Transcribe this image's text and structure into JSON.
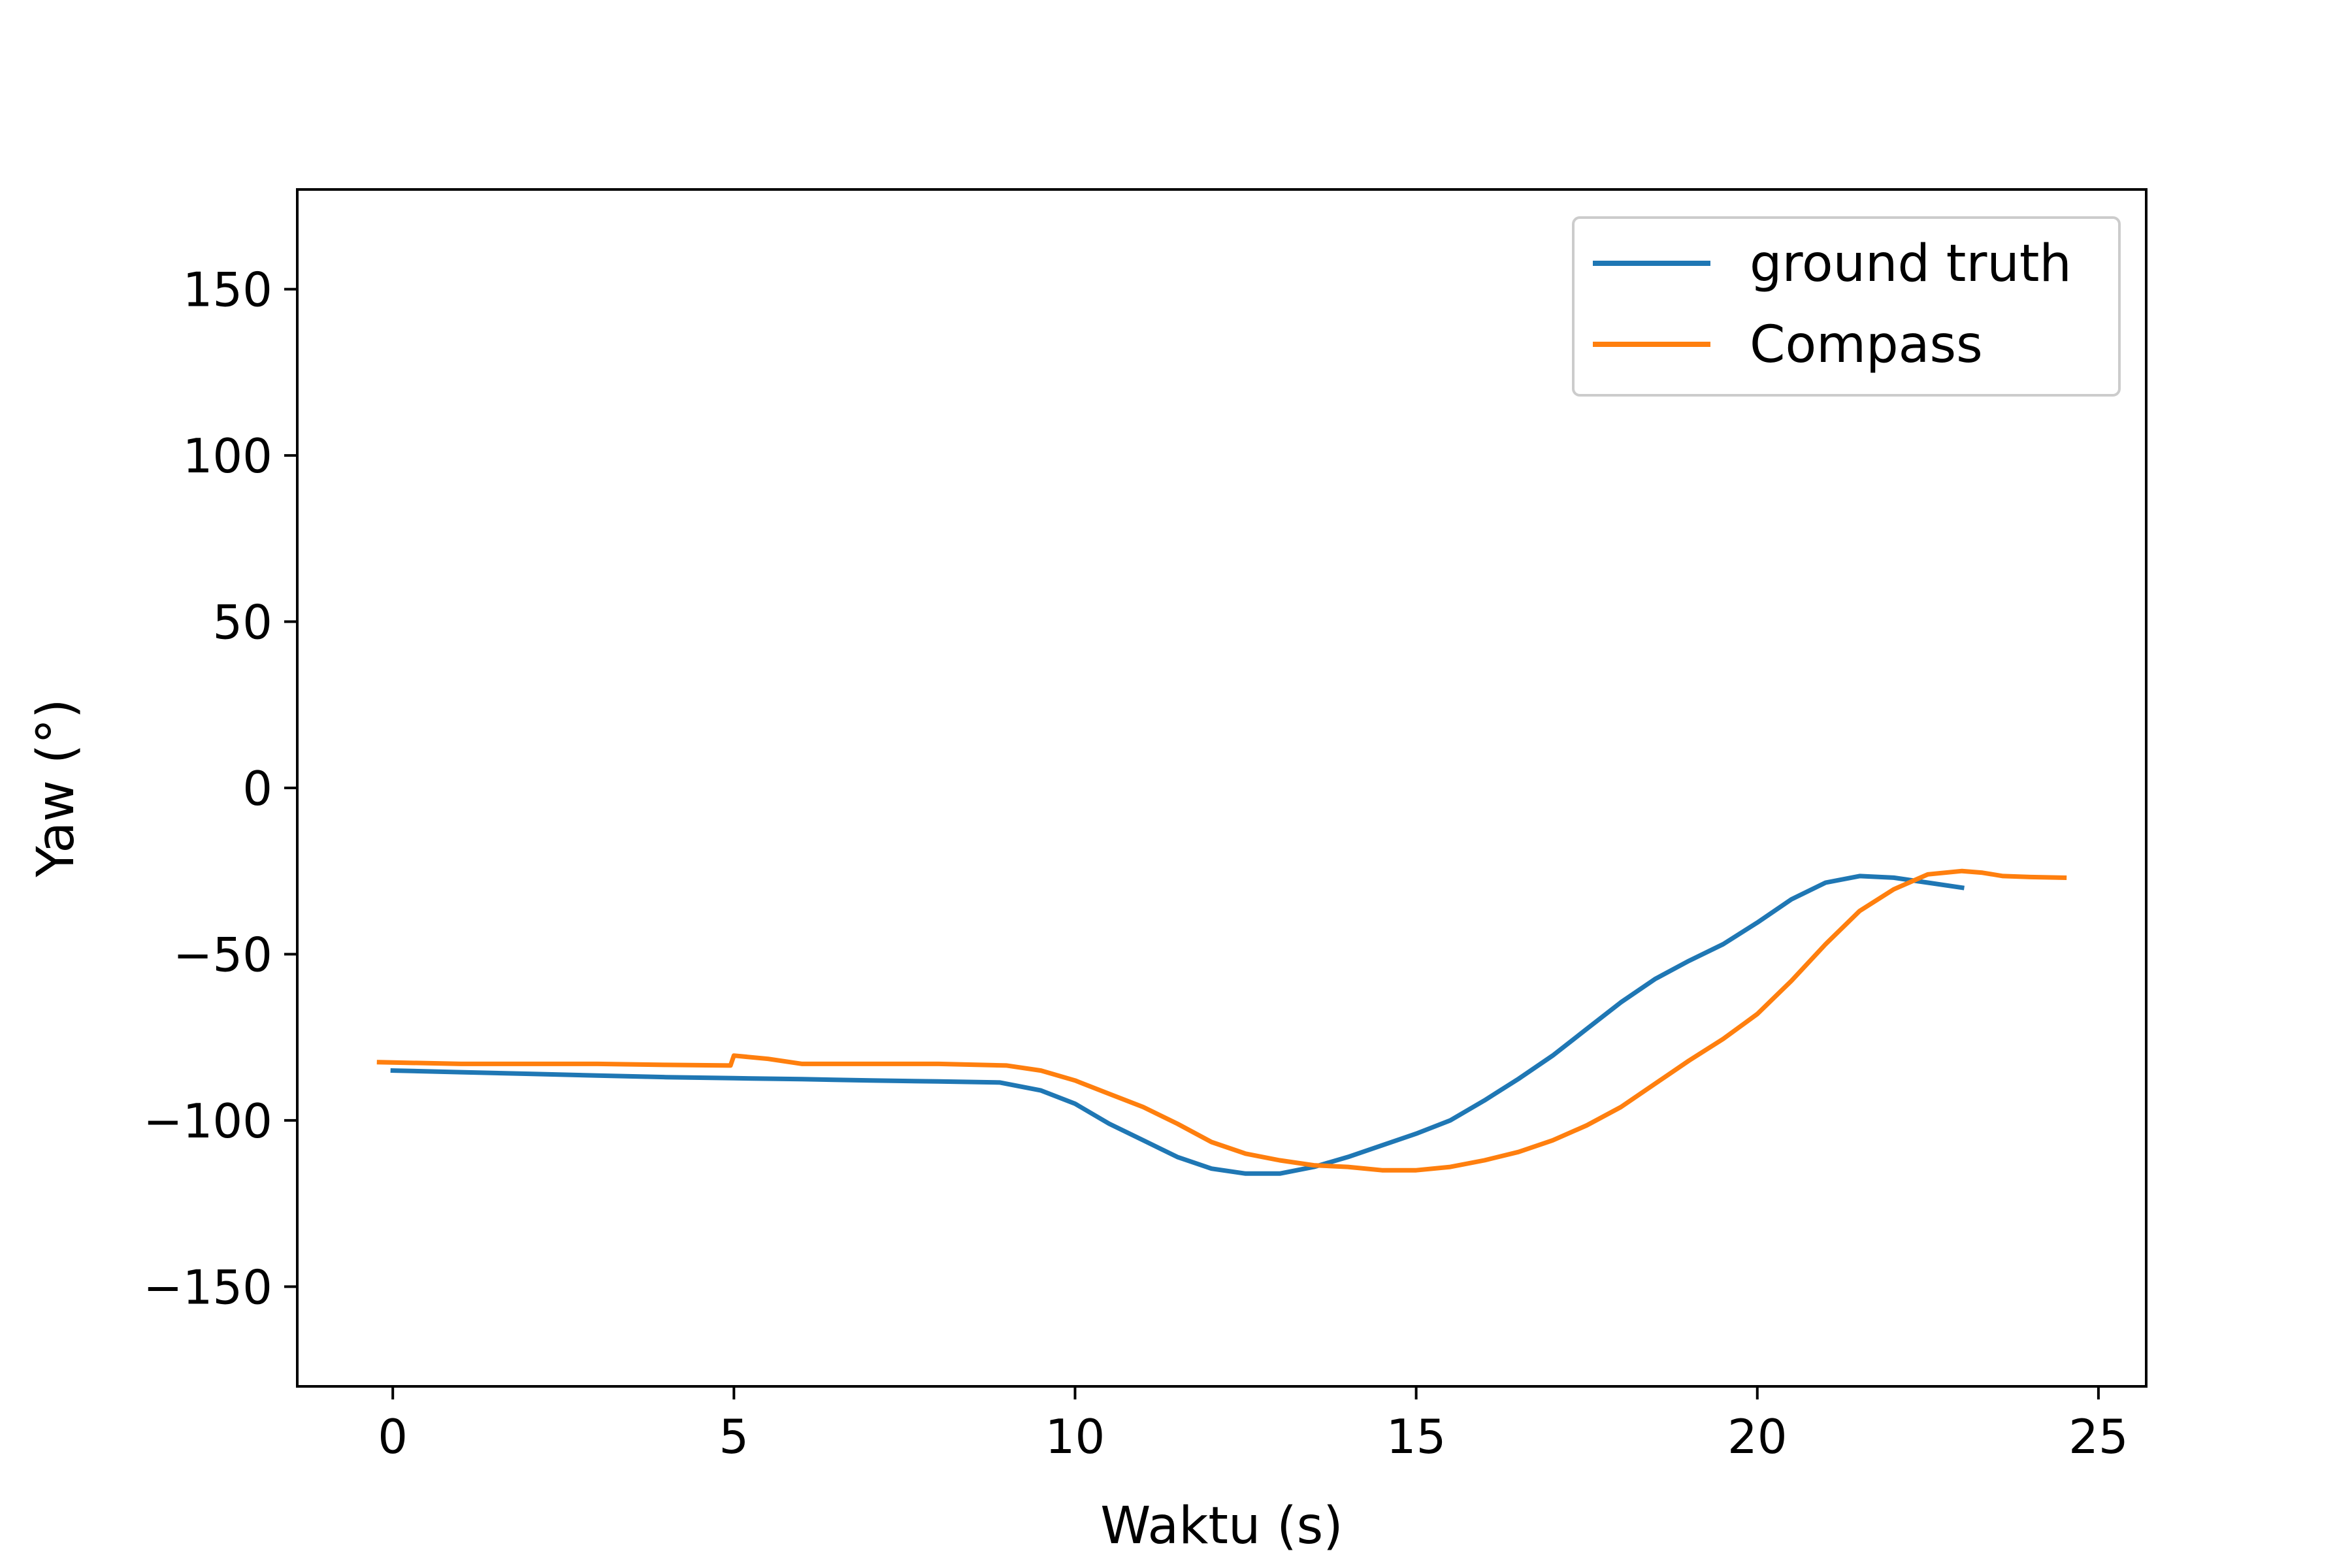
{
  "chart_data": {
    "type": "line",
    "title": "",
    "xlabel": "Waktu (s)",
    "ylabel": "Yaw (°)",
    "xlim": [
      -1.4,
      25.7
    ],
    "ylim": [
      -180,
      180
    ],
    "xticks": [
      0,
      5,
      10,
      15,
      20,
      25
    ],
    "yticks": [
      150,
      100,
      50,
      0,
      -50,
      -100,
      -150
    ],
    "xtick_labels": [
      "0",
      "5",
      "10",
      "15",
      "20",
      "25"
    ],
    "ytick_labels": [
      "150",
      "100",
      "50",
      "0",
      "−50",
      "−100",
      "−150"
    ],
    "grid": false,
    "legend_position": "top-right",
    "series": [
      {
        "name": "ground truth",
        "color": "#1f77b4",
        "x": [
          0,
          1,
          2,
          3,
          4,
          5,
          6,
          7,
          8,
          8.9,
          9.5,
          10,
          10.5,
          11,
          11.5,
          12,
          12.5,
          13,
          13.5,
          14,
          14.5,
          15,
          15.5,
          16,
          16.5,
          17,
          17.5,
          18,
          18.5,
          19,
          19.5,
          20,
          20.5,
          21,
          21.5,
          22,
          22.5,
          23
        ],
        "y": [
          -85,
          -85.5,
          -86,
          -86.5,
          -87,
          -87.3,
          -87.6,
          -88,
          -88.3,
          -88.6,
          -91,
          -95,
          -101,
          -106,
          -111,
          -114.5,
          -116,
          -116,
          -114,
          -111,
          -107.5,
          -104,
          -100,
          -94,
          -87.5,
          -80.5,
          -72.5,
          -64.5,
          -57.5,
          -52,
          -47,
          -40.5,
          -33.5,
          -28.5,
          -26.5,
          -27,
          -28.5,
          -30
        ]
      },
      {
        "name": "Compass",
        "color": "#ff7f0e",
        "x": [
          -0.2,
          1,
          2,
          3,
          4,
          4.95,
          5,
          5.5,
          6,
          7,
          8,
          9,
          9.5,
          10,
          10.5,
          11,
          11.5,
          12,
          12.5,
          13,
          13.5,
          14,
          14.5,
          15,
          15.5,
          16,
          16.5,
          17,
          17.5,
          18,
          18.5,
          19,
          19.5,
          20,
          20.5,
          21,
          21.5,
          22,
          22.5,
          23,
          23.3,
          23.6,
          24,
          24.5
        ],
        "y": [
          -82.5,
          -83,
          -83,
          -83,
          -83.3,
          -83.5,
          -80.5,
          -81.5,
          -83,
          -83,
          -83,
          -83.5,
          -85,
          -88,
          -92,
          -96,
          -101,
          -106.5,
          -110,
          -112,
          -113.5,
          -114,
          -115,
          -115,
          -114,
          -112,
          -109.5,
          -106,
          -101.5,
          -96,
          -89,
          -82,
          -75.5,
          -68,
          -58,
          -47,
          -37,
          -30.5,
          -26,
          -25,
          -25.5,
          -26.5,
          -26.8,
          -27
        ]
      }
    ]
  }
}
